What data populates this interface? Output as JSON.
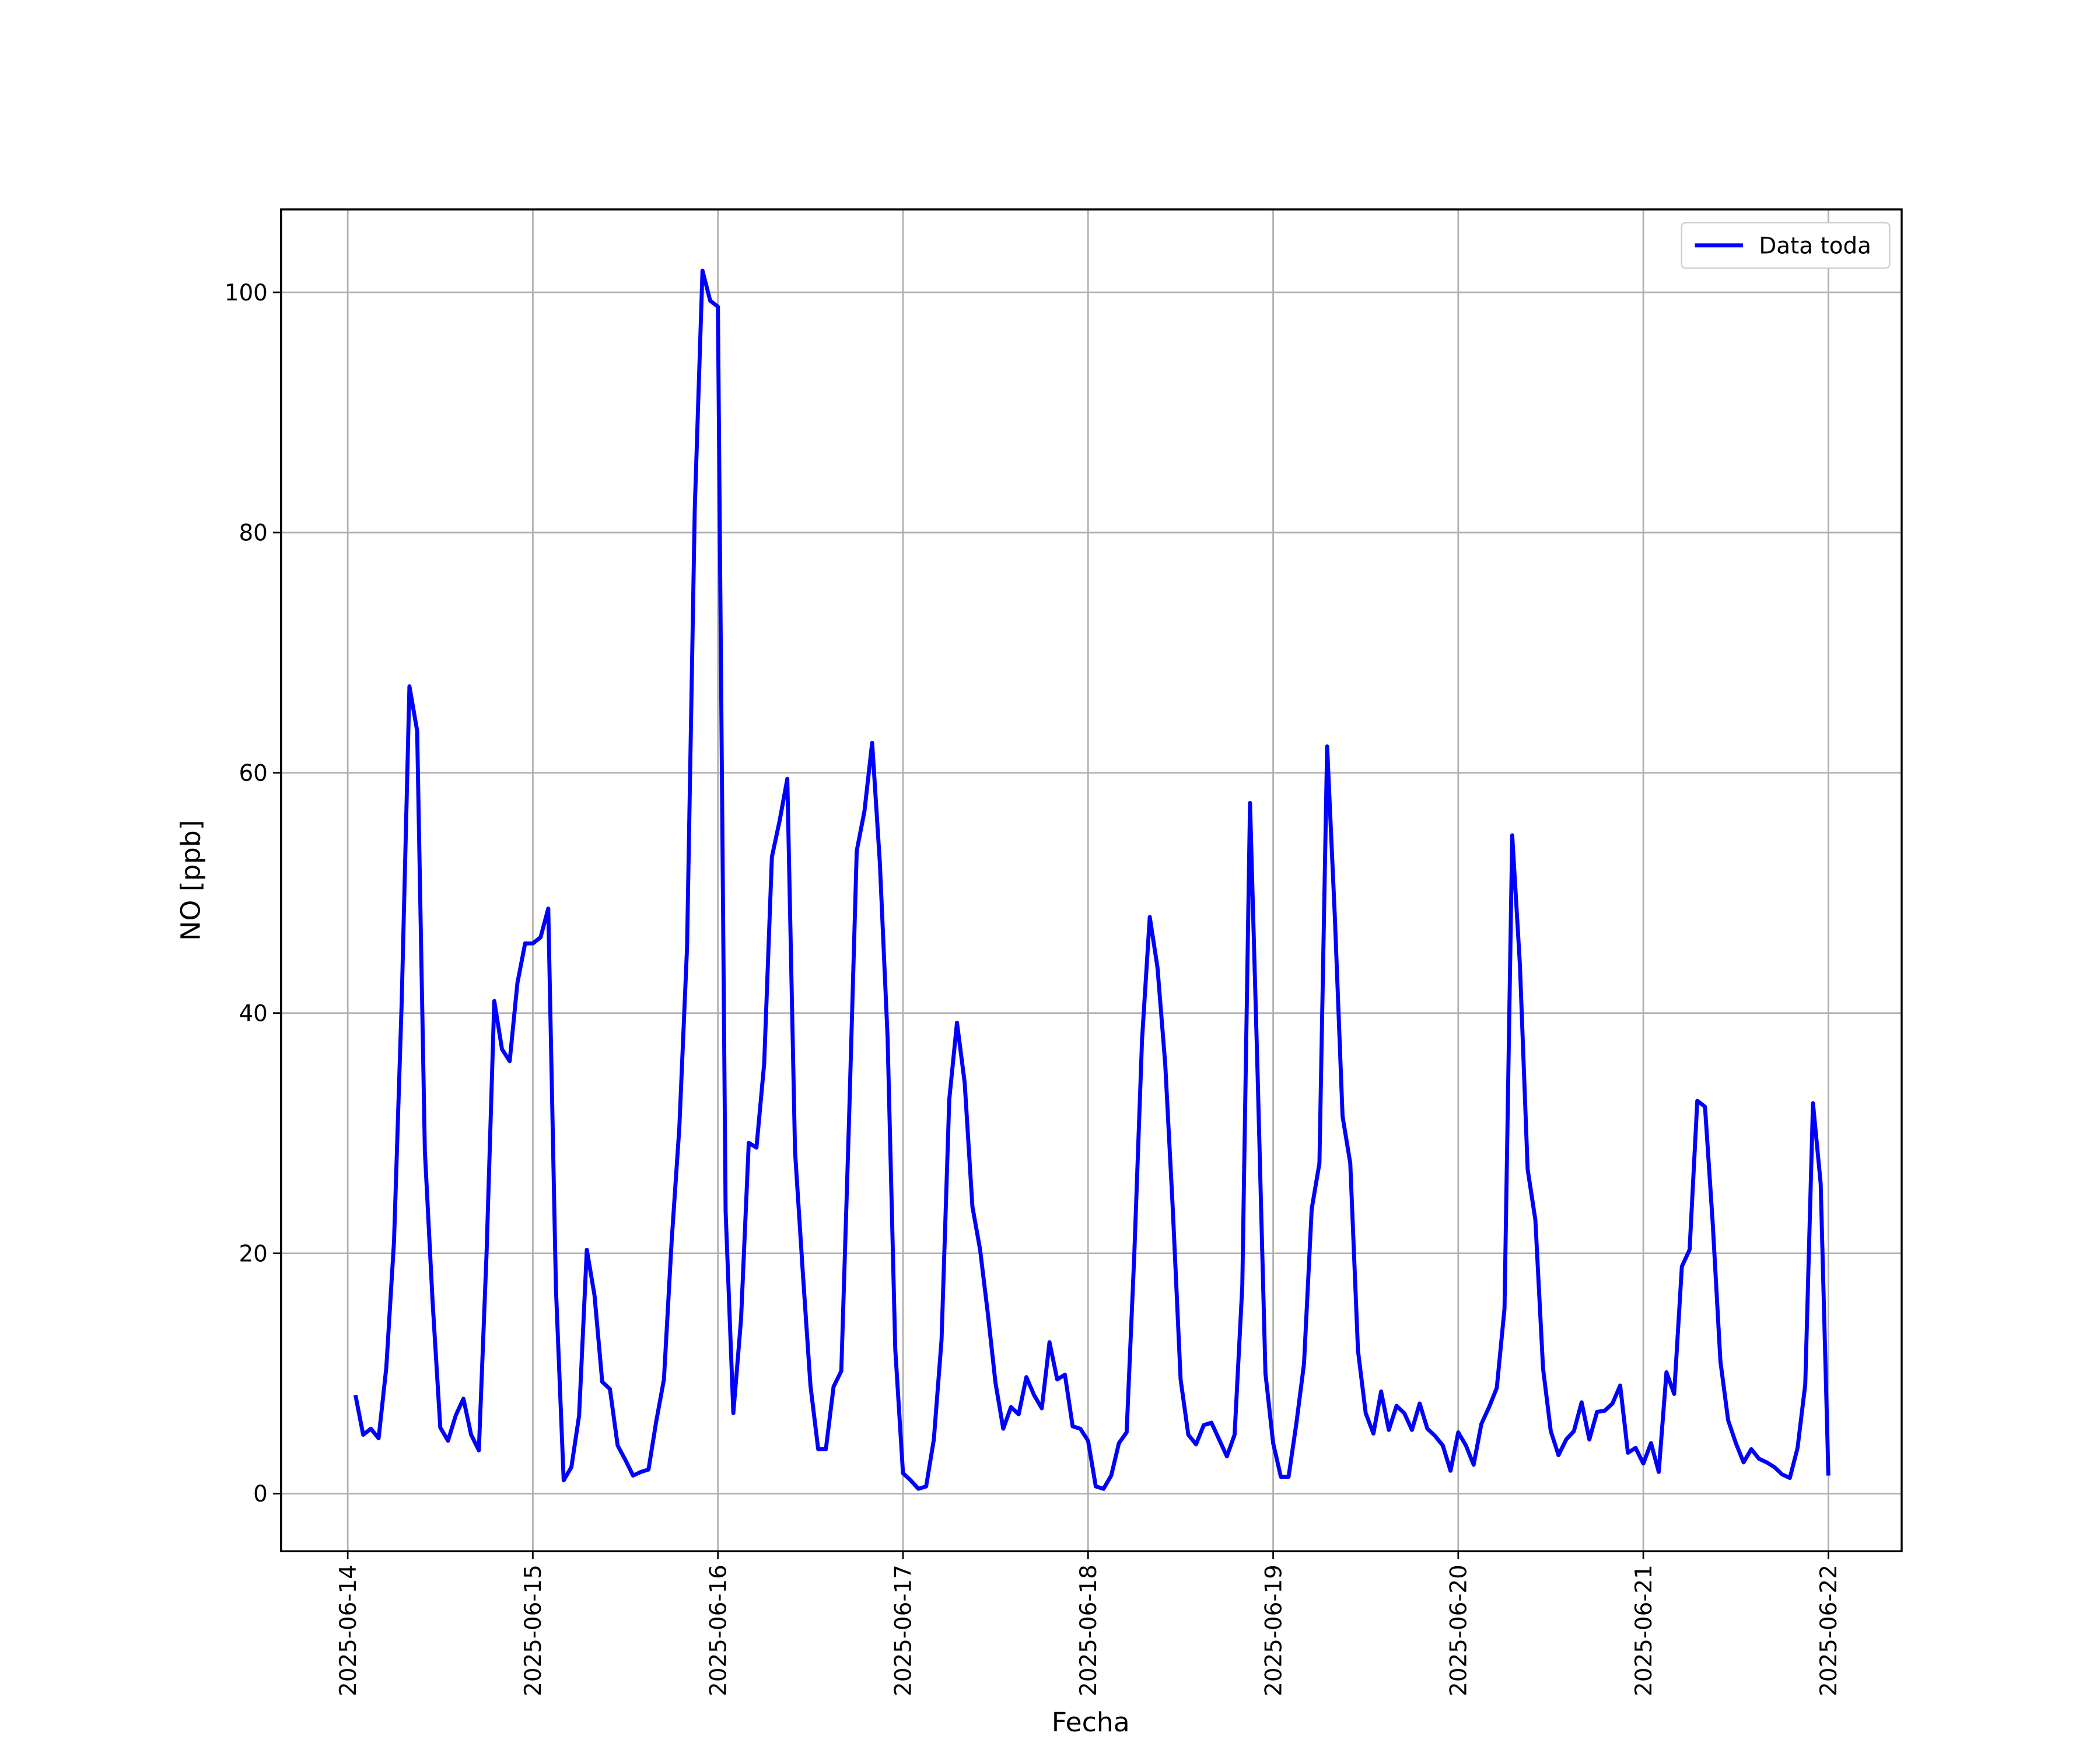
{
  "chart_data": {
    "type": "line",
    "xlabel": "Fecha",
    "ylabel": "NO [ppb]",
    "x": [
      "2025-06-14 01:00",
      "2025-06-14 02:00",
      "2025-06-14 03:00",
      "2025-06-14 04:00",
      "2025-06-14 05:00",
      "2025-06-14 06:00",
      "2025-06-14 07:00",
      "2025-06-14 08:00",
      "2025-06-14 09:00",
      "2025-06-14 10:00",
      "2025-06-14 11:00",
      "2025-06-14 12:00",
      "2025-06-14 13:00",
      "2025-06-14 14:00",
      "2025-06-14 15:00",
      "2025-06-14 16:00",
      "2025-06-14 17:00",
      "2025-06-14 18:00",
      "2025-06-14 19:00",
      "2025-06-14 20:00",
      "2025-06-14 21:00",
      "2025-06-14 22:00",
      "2025-06-14 23:00",
      "2025-06-15 00:00",
      "2025-06-15 01:00",
      "2025-06-15 02:00",
      "2025-06-15 03:00",
      "2025-06-15 04:00",
      "2025-06-15 05:00",
      "2025-06-15 06:00",
      "2025-06-15 07:00",
      "2025-06-15 08:00",
      "2025-06-15 09:00",
      "2025-06-15 10:00",
      "2025-06-15 11:00",
      "2025-06-15 12:00",
      "2025-06-15 13:00",
      "2025-06-15 14:00",
      "2025-06-15 15:00",
      "2025-06-15 16:00",
      "2025-06-15 17:00",
      "2025-06-15 18:00",
      "2025-06-15 19:00",
      "2025-06-15 20:00",
      "2025-06-15 21:00",
      "2025-06-15 22:00",
      "2025-06-15 23:00",
      "2025-06-16 00:00",
      "2025-06-16 01:00",
      "2025-06-16 02:00",
      "2025-06-16 03:00",
      "2025-06-16 04:00",
      "2025-06-16 05:00",
      "2025-06-16 06:00",
      "2025-06-16 07:00",
      "2025-06-16 08:00",
      "2025-06-16 09:00",
      "2025-06-16 10:00",
      "2025-06-16 11:00",
      "2025-06-16 12:00",
      "2025-06-16 13:00",
      "2025-06-16 14:00",
      "2025-06-16 15:00",
      "2025-06-16 16:00",
      "2025-06-16 17:00",
      "2025-06-16 18:00",
      "2025-06-16 19:00",
      "2025-06-16 20:00",
      "2025-06-16 21:00",
      "2025-06-16 22:00",
      "2025-06-16 23:00",
      "2025-06-17 00:00",
      "2025-06-17 01:00",
      "2025-06-17 02:00",
      "2025-06-17 03:00",
      "2025-06-17 04:00",
      "2025-06-17 05:00",
      "2025-06-17 06:00",
      "2025-06-17 07:00",
      "2025-06-17 08:00",
      "2025-06-17 09:00",
      "2025-06-17 10:00",
      "2025-06-17 11:00",
      "2025-06-17 12:00",
      "2025-06-17 13:00",
      "2025-06-17 14:00",
      "2025-06-17 15:00",
      "2025-06-17 16:00",
      "2025-06-17 17:00",
      "2025-06-17 18:00",
      "2025-06-17 19:00",
      "2025-06-17 20:00",
      "2025-06-17 21:00",
      "2025-06-17 22:00",
      "2025-06-17 23:00",
      "2025-06-18 00:00",
      "2025-06-18 01:00",
      "2025-06-18 02:00",
      "2025-06-18 03:00",
      "2025-06-18 04:00",
      "2025-06-18 05:00",
      "2025-06-18 06:00",
      "2025-06-18 07:00",
      "2025-06-18 08:00",
      "2025-06-18 09:00",
      "2025-06-18 10:00",
      "2025-06-18 11:00",
      "2025-06-18 12:00",
      "2025-06-18 13:00",
      "2025-06-18 14:00",
      "2025-06-18 15:00",
      "2025-06-18 16:00",
      "2025-06-18 17:00",
      "2025-06-18 18:00",
      "2025-06-18 19:00",
      "2025-06-18 20:00",
      "2025-06-18 21:00",
      "2025-06-18 22:00",
      "2025-06-18 23:00",
      "2025-06-19 00:00",
      "2025-06-19 01:00",
      "2025-06-19 02:00",
      "2025-06-19 03:00",
      "2025-06-19 04:00",
      "2025-06-19 05:00",
      "2025-06-19 06:00",
      "2025-06-19 07:00",
      "2025-06-19 08:00",
      "2025-06-19 09:00",
      "2025-06-19 10:00",
      "2025-06-19 11:00",
      "2025-06-19 12:00",
      "2025-06-19 13:00",
      "2025-06-19 14:00",
      "2025-06-19 15:00",
      "2025-06-19 16:00",
      "2025-06-19 17:00",
      "2025-06-19 18:00",
      "2025-06-19 19:00",
      "2025-06-19 20:00",
      "2025-06-19 21:00",
      "2025-06-19 22:00",
      "2025-06-19 23:00",
      "2025-06-20 00:00",
      "2025-06-20 01:00",
      "2025-06-20 02:00",
      "2025-06-20 03:00",
      "2025-06-20 04:00",
      "2025-06-20 05:00",
      "2025-06-20 06:00",
      "2025-06-20 07:00",
      "2025-06-20 08:00",
      "2025-06-20 09:00",
      "2025-06-20 10:00",
      "2025-06-20 11:00",
      "2025-06-20 12:00",
      "2025-06-20 13:00",
      "2025-06-20 14:00",
      "2025-06-20 15:00",
      "2025-06-20 16:00",
      "2025-06-20 17:00",
      "2025-06-20 18:00",
      "2025-06-20 19:00",
      "2025-06-20 20:00",
      "2025-06-20 21:00",
      "2025-06-20 22:00",
      "2025-06-20 23:00",
      "2025-06-21 00:00",
      "2025-06-21 01:00",
      "2025-06-21 02:00",
      "2025-06-21 03:00",
      "2025-06-21 04:00",
      "2025-06-21 05:00",
      "2025-06-21 06:00",
      "2025-06-21 07:00",
      "2025-06-21 08:00",
      "2025-06-21 09:00",
      "2025-06-21 10:00",
      "2025-06-21 11:00",
      "2025-06-21 12:00",
      "2025-06-21 13:00",
      "2025-06-21 14:00",
      "2025-06-21 15:00",
      "2025-06-21 16:00",
      "2025-06-21 17:00",
      "2025-06-21 18:00",
      "2025-06-21 19:00",
      "2025-06-21 20:00",
      "2025-06-21 21:00",
      "2025-06-21 22:00",
      "2025-06-21 23:00",
      "2025-06-22 00:00"
    ],
    "series": [
      {
        "name": "Data toda",
        "color": "#0000ff",
        "values": [
          8.2,
          4.9,
          5.4,
          4.6,
          10.5,
          21,
          41,
          67.2,
          63.5,
          28.5,
          16,
          5.5,
          4.4,
          6.5,
          7.9,
          4.9,
          3.6,
          20,
          41,
          37,
          36,
          42.5,
          45.8,
          45.8,
          46.3,
          48.7,
          17,
          1.1,
          2.2,
          6.5,
          20.3,
          16.5,
          9.3,
          8.7,
          4,
          2.8,
          1.5,
          1.8,
          2,
          6,
          9.5,
          21,
          30.5,
          45.5,
          82,
          101.8,
          99.3,
          98.8,
          23.5,
          6.7,
          14.5,
          29.2,
          28.8,
          35.8,
          53,
          56,
          59.5,
          28.5,
          18.5,
          9,
          3.7,
          3.7,
          8.9,
          10.2,
          31,
          53.5,
          56.8,
          62.5,
          52.5,
          38,
          12,
          1.7,
          1.1,
          0.4,
          0.6,
          4.5,
          12.8,
          32.8,
          39.2,
          34.2,
          23.9,
          20.3,
          15,
          9.2,
          5.4,
          7.2,
          6.6,
          9.7,
          8.2,
          7.1,
          12.6,
          9.5,
          9.9,
          5.6,
          5.4,
          4.4,
          0.6,
          0.4,
          1.5,
          4.2,
          5.1,
          20,
          37.8,
          48,
          43.8,
          35.8,
          23.5,
          9.5,
          4.9,
          4.1,
          5.7,
          5.9,
          4.5,
          3.1,
          4.9,
          17.3,
          57.5,
          34.5,
          10,
          4.2,
          1.4,
          1.4,
          5.8,
          10.8,
          23.7,
          27.5,
          62.2,
          48,
          31.4,
          27.5,
          11.9,
          6.7,
          5,
          8.5,
          5.3,
          7.3,
          6.7,
          5.3,
          7.5,
          5.4,
          4.8,
          4,
          1.9,
          5.1,
          4,
          2.4,
          5.8,
          7.2,
          8.8,
          15.4,
          54.8,
          44,
          27,
          22.8,
          10.4,
          5.2,
          3.2,
          4.5,
          5.2,
          7.6,
          4.5,
          6.8,
          6.9,
          7.5,
          9,
          3.4,
          3.8,
          2.5,
          4.2,
          1.8,
          10.1,
          8.3,
          18.9,
          20.3,
          32.7,
          32.2,
          22.5,
          11,
          6.1,
          4.2,
          2.6,
          3.7,
          2.9,
          2.6,
          2.2,
          1.6,
          1.3,
          3.8,
          9.1,
          32.5,
          25.8,
          1.5
        ]
      }
    ],
    "xlim": [
      "2025-06-13 15:21",
      "2025-06-22 09:30"
    ],
    "xticks": [
      "2025-06-14",
      "2025-06-15",
      "2025-06-16",
      "2025-06-17",
      "2025-06-18",
      "2025-06-19",
      "2025-06-20",
      "2025-06-21",
      "2025-06-22"
    ],
    "ylim": [
      -4.8,
      106.9
    ],
    "yticks": [
      0,
      20,
      40,
      60,
      80,
      100
    ],
    "grid": true,
    "legend": "upper right"
  }
}
